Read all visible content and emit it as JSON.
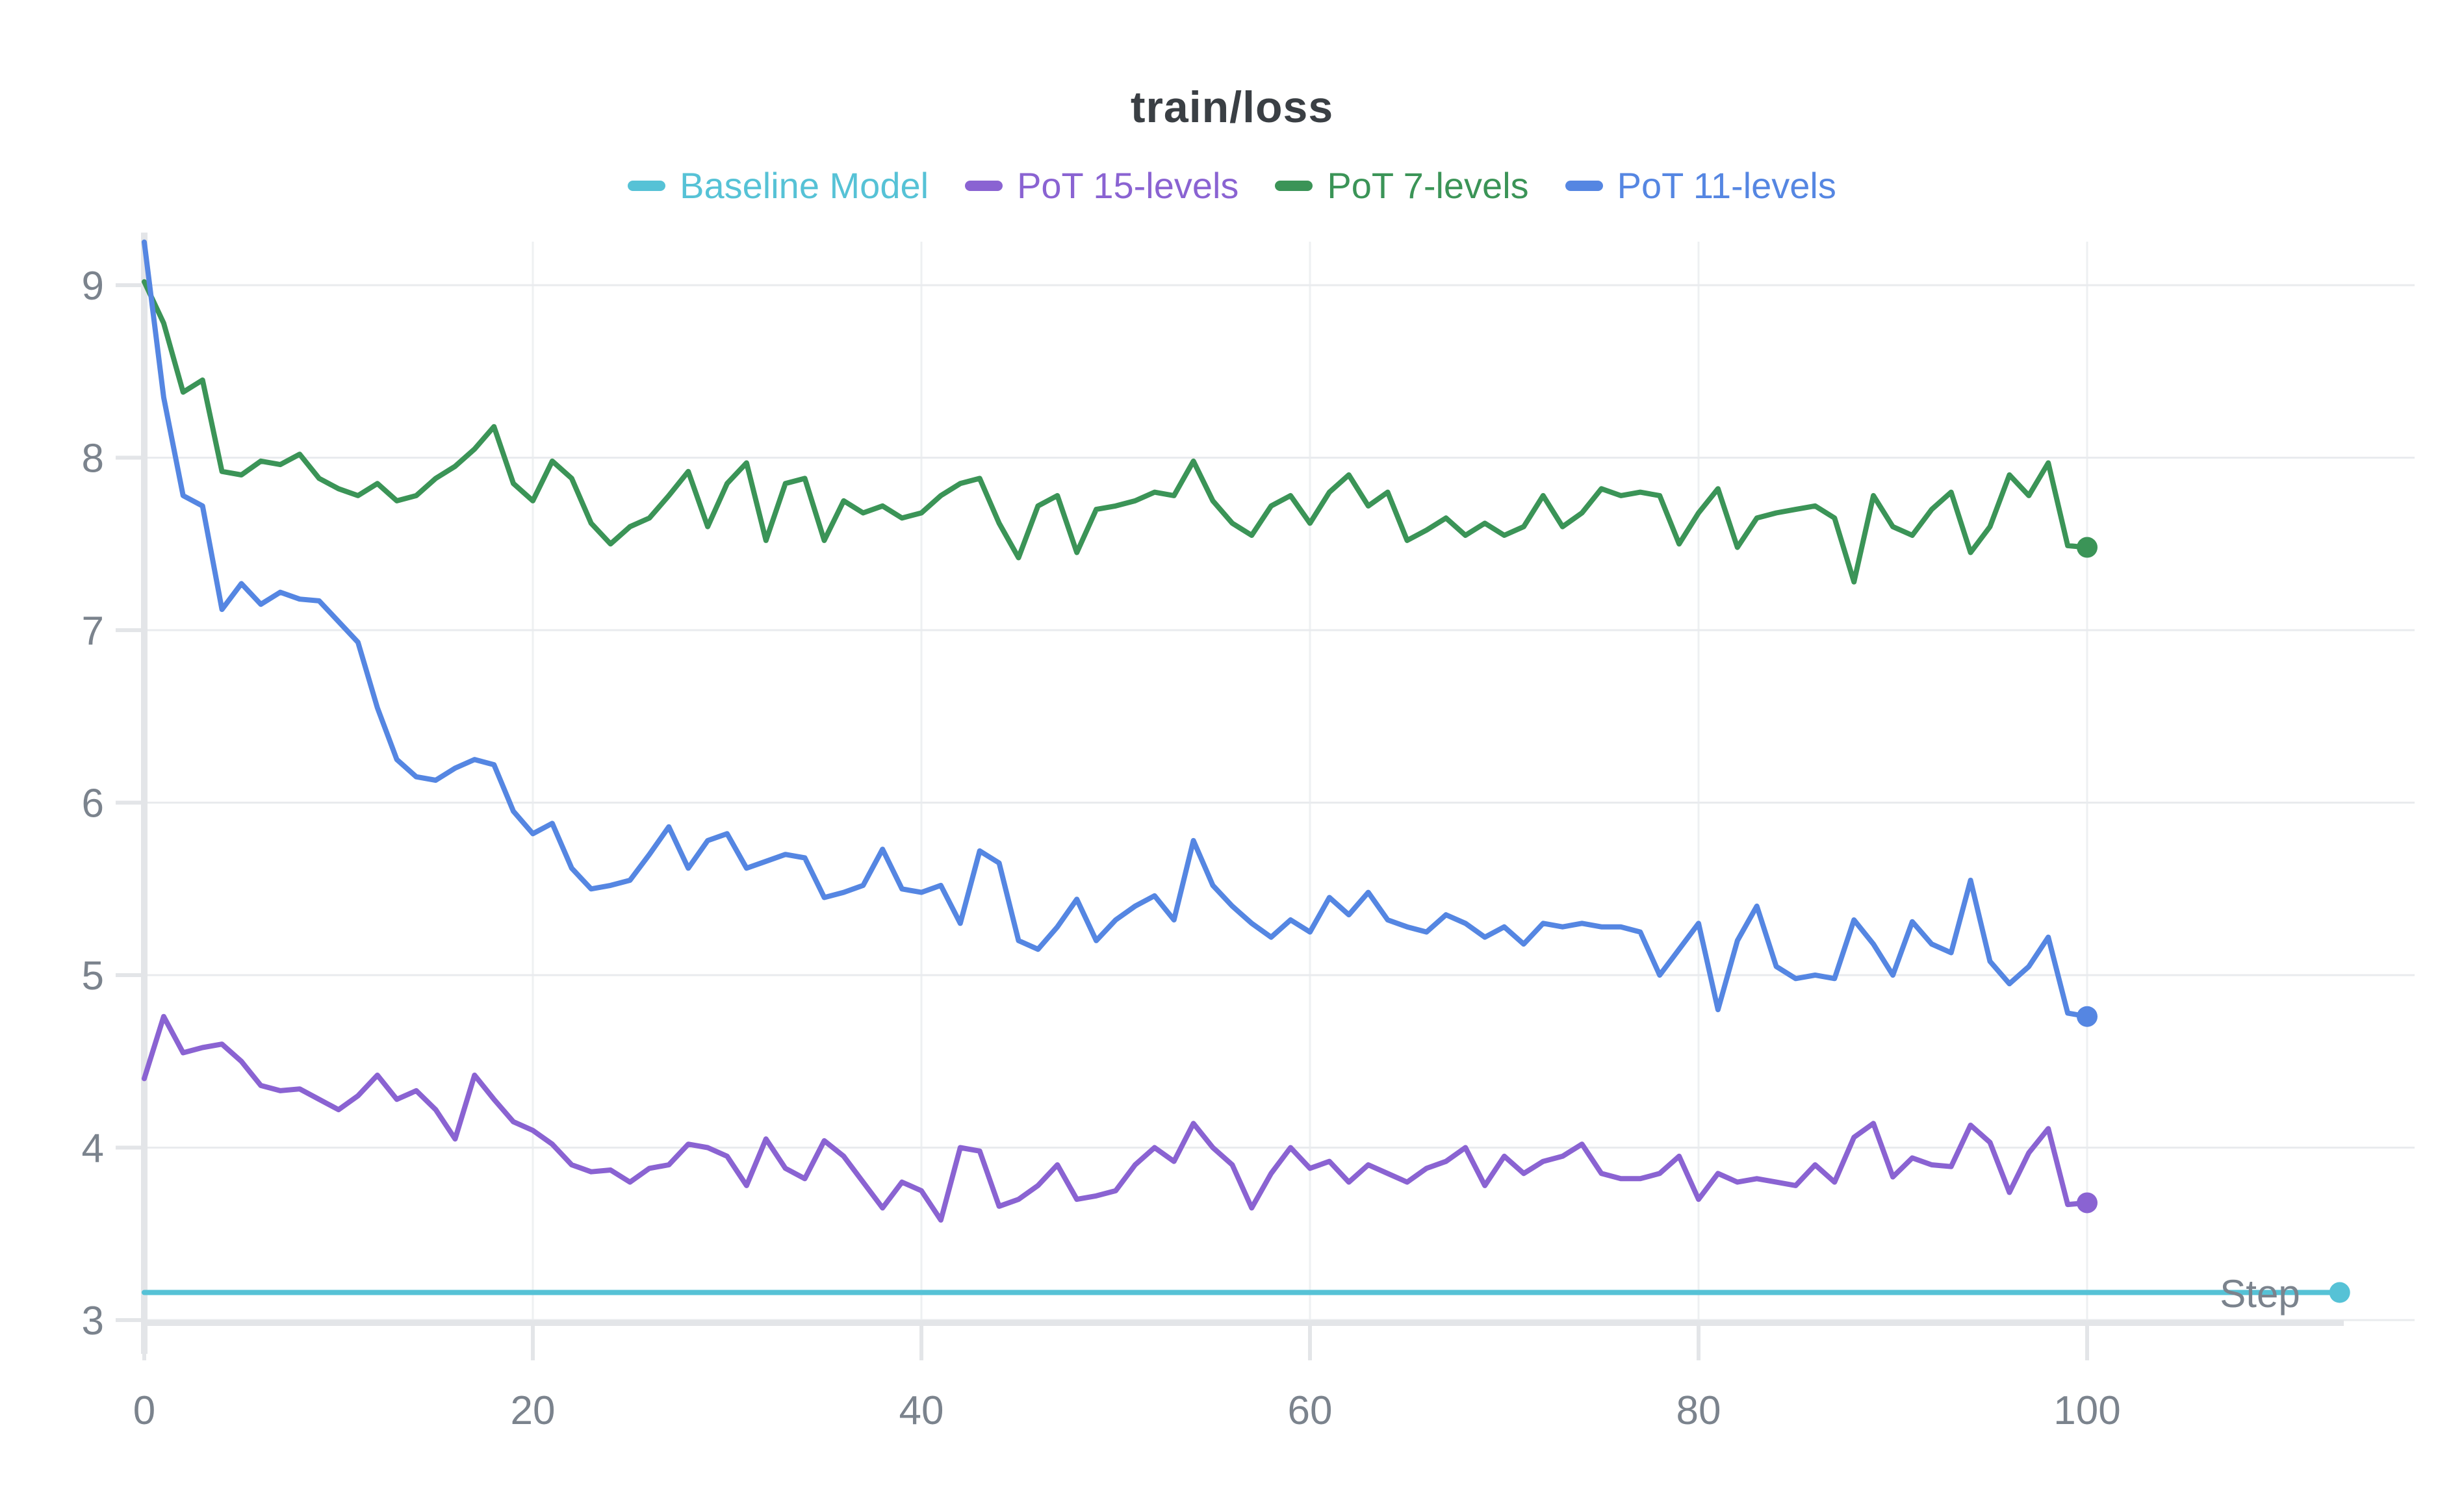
{
  "chart": {
    "title": "train/loss"
  },
  "styles": {
    "background": "#ffffff",
    "title_color": "#3a3f44",
    "tick_color": "#7b838d",
    "grid_color": "#e9ebee",
    "axis_color": "#e3e5e8",
    "step_label_color": "#7b838d"
  },
  "chart_data": {
    "type": "line",
    "title": "train/loss",
    "xlabel": "Step",
    "ylabel": "",
    "x_ticks": [
      0,
      20,
      40,
      60,
      80,
      100
    ],
    "y_ticks": [
      3,
      4,
      5,
      6,
      7,
      8,
      9
    ],
    "xlim": [
      0,
      113.5
    ],
    "ylim": [
      2.9,
      9.35
    ],
    "grid": true,
    "legend_position": "top",
    "series": [
      {
        "name": "Baseline Model",
        "color": "#56c2d6",
        "x": [
          0,
          113
        ],
        "values": [
          3.16,
          3.16
        ],
        "end_dot": true
      },
      {
        "name": "PoT 15-levels",
        "color": "#8a63d2",
        "x_start": 0,
        "x_step": 1,
        "values": [
          4.4,
          4.76,
          4.55,
          4.58,
          4.6,
          4.5,
          4.36,
          4.33,
          4.34,
          4.28,
          4.22,
          4.3,
          4.42,
          4.28,
          4.33,
          4.22,
          4.05,
          4.42,
          4.28,
          4.15,
          4.1,
          4.02,
          3.9,
          3.86,
          3.87,
          3.8,
          3.88,
          3.9,
          4.02,
          4.0,
          3.95,
          3.78,
          4.05,
          3.88,
          3.82,
          4.04,
          3.95,
          3.8,
          3.65,
          3.8,
          3.75,
          3.58,
          4.0,
          3.98,
          3.66,
          3.7,
          3.78,
          3.9,
          3.7,
          3.72,
          3.75,
          3.9,
          4.0,
          3.92,
          4.14,
          4.0,
          3.9,
          3.65,
          3.85,
          4.0,
          3.88,
          3.92,
          3.8,
          3.9,
          3.85,
          3.8,
          3.88,
          3.92,
          4.0,
          3.78,
          3.95,
          3.85,
          3.92,
          3.95,
          4.02,
          3.85,
          3.82,
          3.82,
          3.85,
          3.95,
          3.7,
          3.85,
          3.8,
          3.82,
          3.8,
          3.78,
          3.9,
          3.8,
          4.06,
          4.14,
          3.83,
          3.94,
          3.9,
          3.89,
          4.13,
          4.03,
          3.74,
          3.97,
          4.11,
          3.67,
          3.68
        ],
        "end_dot": true
      },
      {
        "name": "PoT 7-levels",
        "color": "#3b9457",
        "x_start": 0,
        "x_step": 1,
        "values": [
          9.02,
          8.78,
          8.38,
          8.45,
          7.92,
          7.9,
          7.98,
          7.96,
          8.02,
          7.88,
          7.82,
          7.78,
          7.85,
          7.75,
          7.78,
          7.88,
          7.95,
          8.05,
          8.18,
          7.85,
          7.75,
          7.98,
          7.88,
          7.62,
          7.5,
          7.6,
          7.65,
          7.78,
          7.92,
          7.6,
          7.85,
          7.97,
          7.52,
          7.85,
          7.88,
          7.52,
          7.75,
          7.68,
          7.72,
          7.65,
          7.68,
          7.78,
          7.85,
          7.88,
          7.62,
          7.42,
          7.72,
          7.78,
          7.45,
          7.7,
          7.72,
          7.75,
          7.8,
          7.78,
          7.98,
          7.75,
          7.62,
          7.55,
          7.72,
          7.78,
          7.62,
          7.8,
          7.9,
          7.72,
          7.8,
          7.52,
          7.58,
          7.65,
          7.55,
          7.62,
          7.55,
          7.6,
          7.78,
          7.6,
          7.68,
          7.82,
          7.78,
          7.8,
          7.78,
          7.5,
          7.68,
          7.82,
          7.48,
          7.65,
          7.68,
          7.7,
          7.72,
          7.65,
          7.28,
          7.78,
          7.6,
          7.55,
          7.7,
          7.8,
          7.45,
          7.6,
          7.9,
          7.78,
          7.97,
          7.49,
          7.48
        ],
        "end_dot": true
      },
      {
        "name": "PoT 11-levels",
        "color": "#5586e2",
        "x_start": 0,
        "x_step": 1,
        "values": [
          9.25,
          8.35,
          7.78,
          7.72,
          7.12,
          7.27,
          7.15,
          7.22,
          7.18,
          7.17,
          7.05,
          6.93,
          6.55,
          6.25,
          6.15,
          6.13,
          6.2,
          6.25,
          6.22,
          5.95,
          5.82,
          5.88,
          5.62,
          5.5,
          5.52,
          5.55,
          5.7,
          5.86,
          5.62,
          5.78,
          5.82,
          5.62,
          5.66,
          5.7,
          5.68,
          5.45,
          5.48,
          5.52,
          5.73,
          5.5,
          5.48,
          5.52,
          5.3,
          5.72,
          5.65,
          5.2,
          5.15,
          5.28,
          5.44,
          5.2,
          5.32,
          5.4,
          5.46,
          5.32,
          5.78,
          5.52,
          5.4,
          5.3,
          5.22,
          5.32,
          5.25,
          5.45,
          5.35,
          5.48,
          5.32,
          5.28,
          5.25,
          5.35,
          5.3,
          5.22,
          5.28,
          5.18,
          5.3,
          5.28,
          5.3,
          5.28,
          5.28,
          5.25,
          5.0,
          5.15,
          5.3,
          4.8,
          5.2,
          5.4,
          5.05,
          4.98,
          5.0,
          4.98,
          5.32,
          5.18,
          5.0,
          5.31,
          5.18,
          5.13,
          5.55,
          5.08,
          4.95,
          5.05,
          5.22,
          4.78,
          4.76
        ],
        "end_dot": true
      }
    ]
  }
}
